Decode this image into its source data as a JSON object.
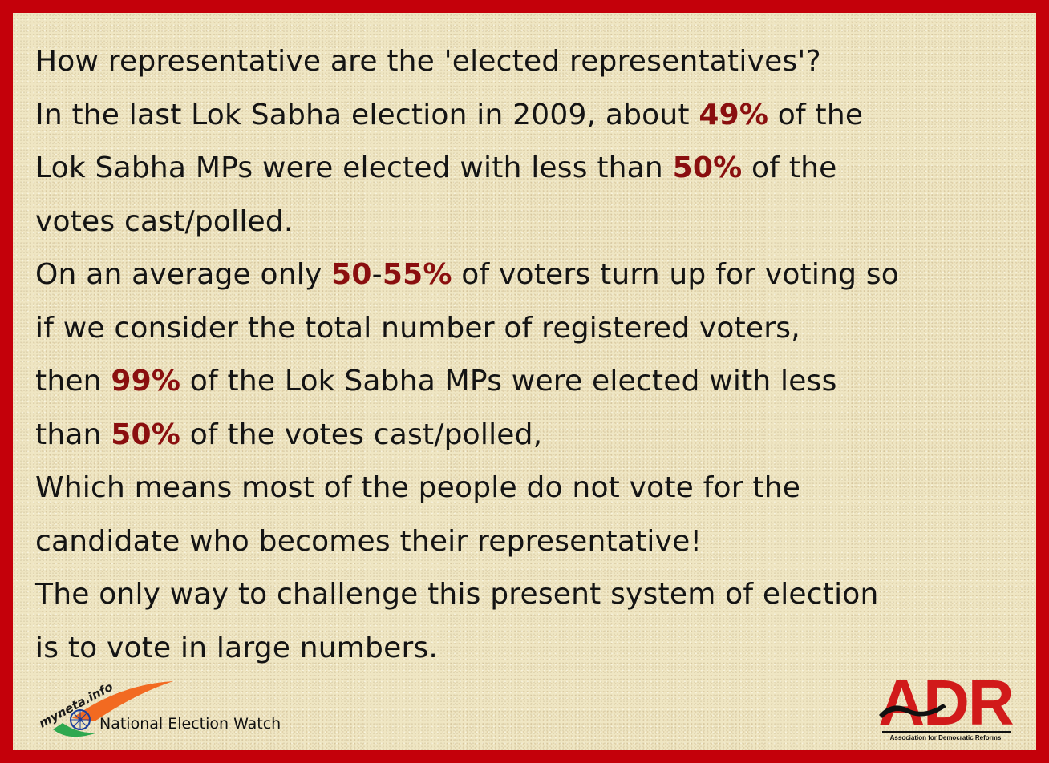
{
  "poster": {
    "lines": [
      {
        "segments": [
          {
            "text": "How representative are the 'elected representatives'?",
            "hl": false
          }
        ]
      },
      {
        "segments": [
          {
            "text": "In the last Lok Sabha election in 2009, about ",
            "hl": false
          },
          {
            "text": "49%",
            "hl": true
          },
          {
            "text": " of the",
            "hl": false
          }
        ]
      },
      {
        "segments": [
          {
            "text": "Lok Sabha MPs were elected with less than ",
            "hl": false
          },
          {
            "text": "50%",
            "hl": true
          },
          {
            "text": " of the",
            "hl": false
          }
        ]
      },
      {
        "segments": [
          {
            "text": "votes cast/polled.",
            "hl": false
          }
        ]
      },
      {
        "segments": [
          {
            "text": "On an average only ",
            "hl": false
          },
          {
            "text": "50",
            "hl": true
          },
          {
            "text": "-",
            "hl": false
          },
          {
            "text": "55%",
            "hl": true
          },
          {
            "text": " of voters turn up for voting so",
            "hl": false
          }
        ]
      },
      {
        "segments": [
          {
            "text": "if we consider the total number of registered voters,",
            "hl": false
          }
        ]
      },
      {
        "segments": [
          {
            "text": "then ",
            "hl": false
          },
          {
            "text": "99%",
            "hl": true
          },
          {
            "text": " of the Lok Sabha MPs were elected with less",
            "hl": false
          }
        ]
      },
      {
        "segments": [
          {
            "text": "than ",
            "hl": false
          },
          {
            "text": "50%",
            "hl": true
          },
          {
            "text": " of the votes cast/polled,",
            "hl": false
          }
        ]
      },
      {
        "segments": [
          {
            "text": "Which means most of the people do not vote for the",
            "hl": false
          }
        ]
      },
      {
        "segments": [
          {
            "text": "candidate who becomes their representative!",
            "hl": false
          }
        ]
      },
      {
        "segments": [
          {
            "text": "The only way to challenge this present system of election",
            "hl": false
          }
        ]
      },
      {
        "segments": [
          {
            "text": "is to vote in large numbers.",
            "hl": false
          }
        ]
      }
    ]
  },
  "logos": {
    "myneta_logo": {
      "text": "myneta.info",
      "caption": "National Election Watch"
    },
    "adr_logo": {
      "letters": "ADR",
      "tagline": "Association for Democratic Reforms"
    }
  },
  "colors": {
    "border": "#c4000a",
    "background": "#efe6c3",
    "text": "#141414",
    "highlight": "#8a0f0f",
    "adr_red": "#d11a1a"
  }
}
